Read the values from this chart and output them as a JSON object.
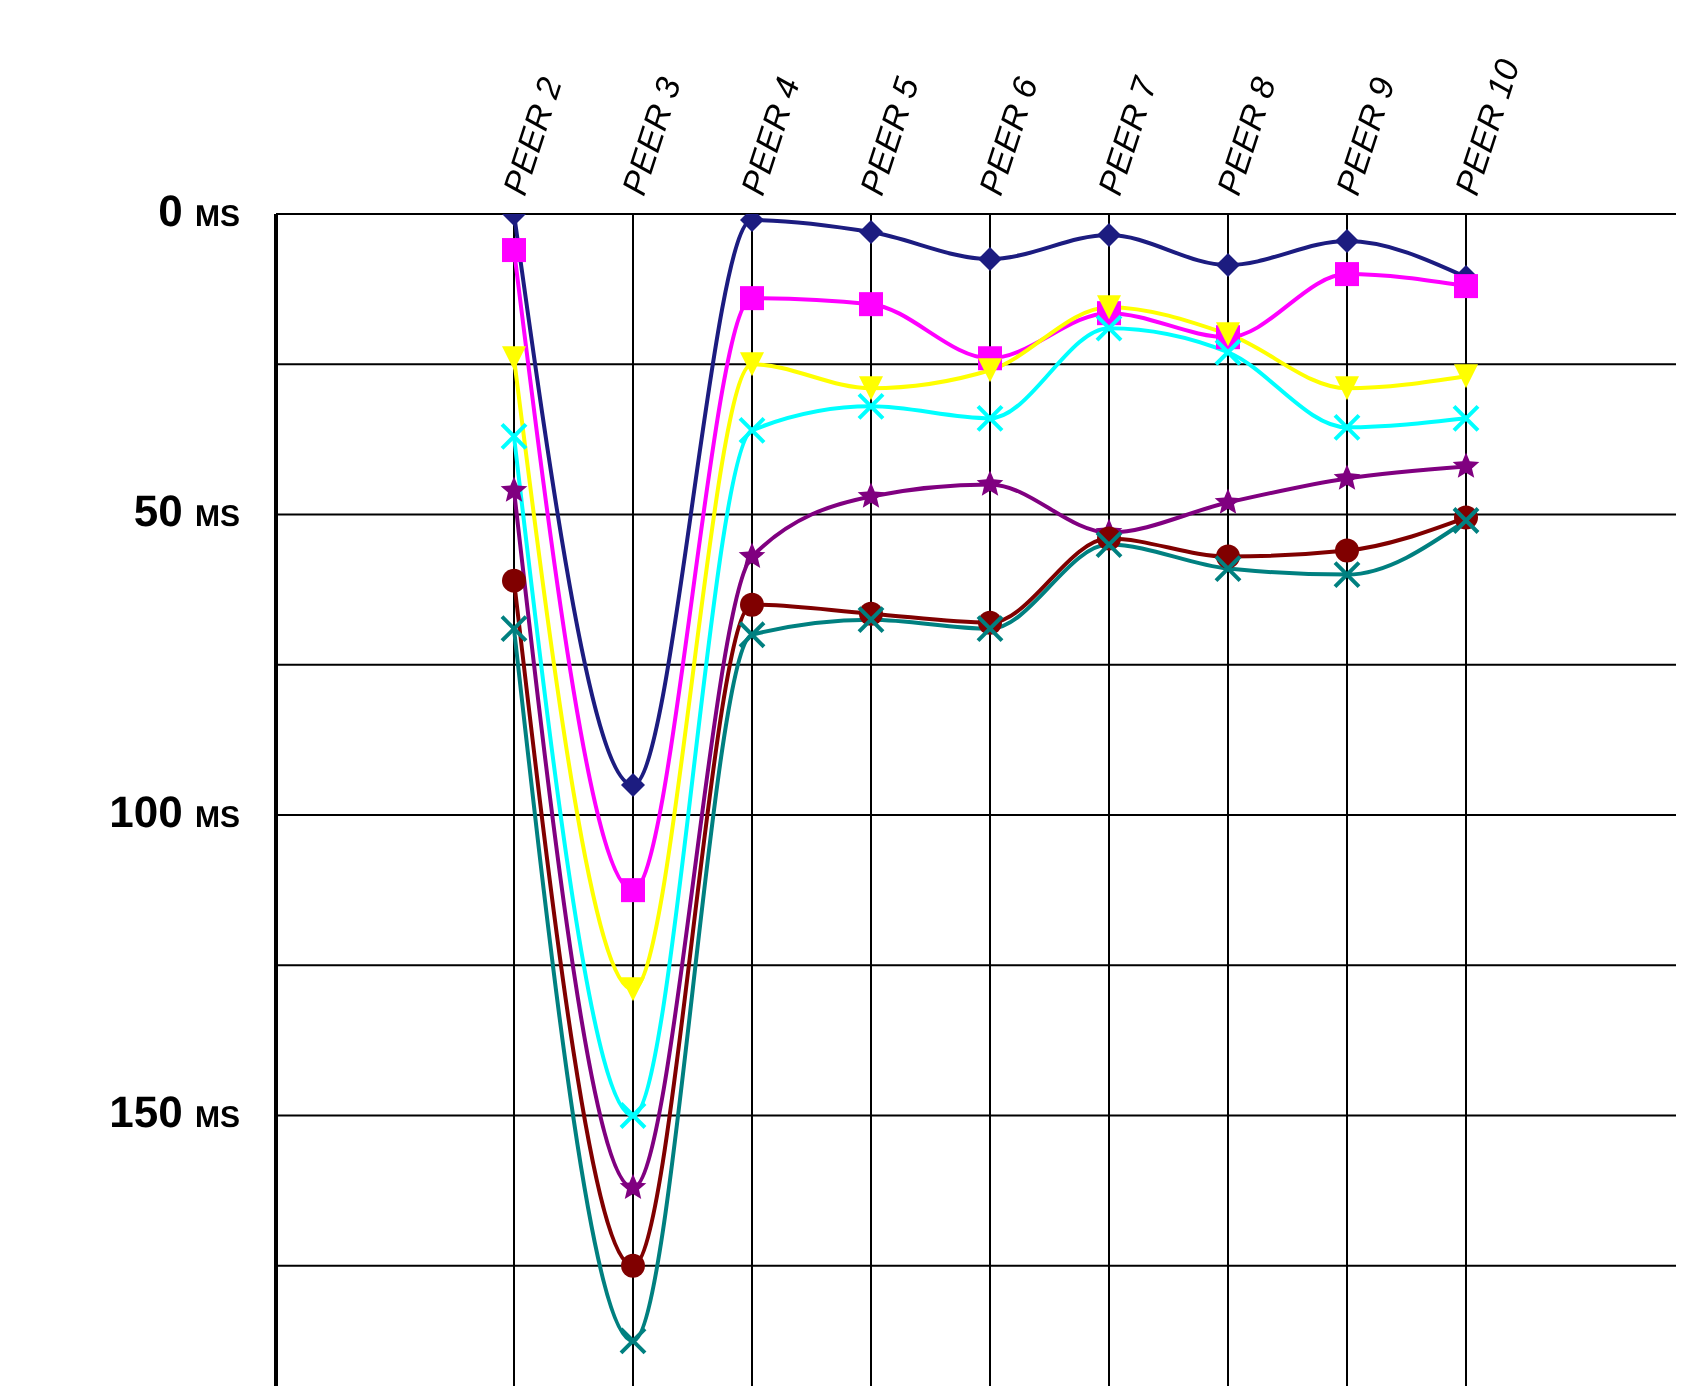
{
  "chart_data": {
    "type": "line",
    "categories": [
      "PEER 2",
      "PEER 3",
      "PEER 4",
      "PEER 5",
      "PEER 6",
      "PEER 7",
      "PEER 8",
      "PEER 9",
      "PEER 10"
    ],
    "ylim": [
      195,
      0
    ],
    "yticks": [
      {
        "value": 0,
        "label": "0 ms"
      },
      {
        "value": 25,
        "label": null
      },
      {
        "value": 50,
        "label": "50 ms"
      },
      {
        "value": 75,
        "label": null
      },
      {
        "value": 100,
        "label": "100 ms"
      },
      {
        "value": 125,
        "label": null
      },
      {
        "value": 150,
        "label": "150 ms"
      },
      {
        "value": 175,
        "label": null
      }
    ],
    "grid": true,
    "line_style": "solid",
    "series": [
      {
        "color": "#1c1c80",
        "marker": "diamond",
        "values": [
          0,
          95,
          1,
          3,
          7.5,
          3.5,
          8.5,
          4.5,
          10.5
        ]
      },
      {
        "color": "#ff00ff",
        "marker": "square",
        "values": [
          6,
          112.5,
          14,
          15,
          24,
          16.5,
          20.5,
          10,
          12
        ]
      },
      {
        "color": "#ffff00",
        "marker": "triangle",
        "values": [
          24,
          129,
          25,
          29,
          26,
          15.5,
          20,
          29,
          27
        ]
      },
      {
        "color": "#00ffff",
        "marker": "cross",
        "values": [
          37,
          150,
          36,
          32,
          34,
          19,
          23,
          35.5,
          34
        ]
      },
      {
        "color": "#800080",
        "marker": "star",
        "values": [
          46,
          162,
          57,
          47,
          45,
          53,
          48,
          44,
          42
        ]
      },
      {
        "color": "#800000",
        "marker": "circle",
        "values": [
          61,
          175,
          65,
          66.5,
          68,
          54,
          57,
          56,
          50.5
        ]
      },
      {
        "color": "#008080",
        "marker": "cross",
        "values": [
          69,
          187.5,
          70,
          67.5,
          69,
          55,
          59,
          60,
          51
        ]
      }
    ]
  }
}
